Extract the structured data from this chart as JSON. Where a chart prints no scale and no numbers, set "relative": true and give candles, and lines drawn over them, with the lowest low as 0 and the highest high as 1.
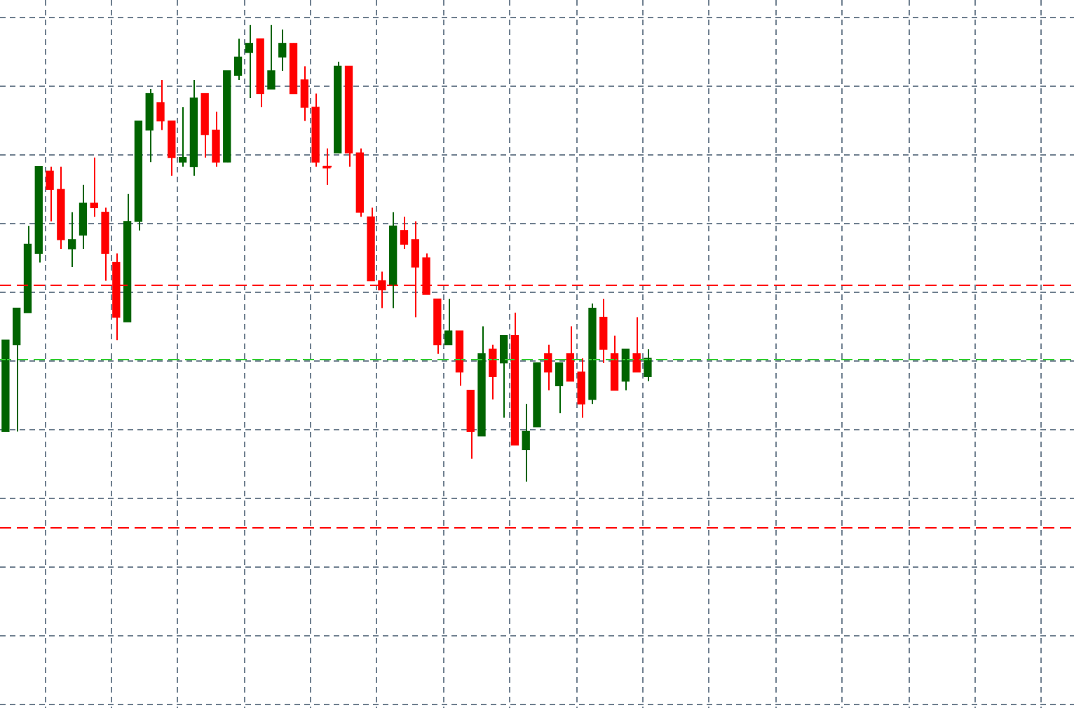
{
  "chart_data": {
    "type": "candlestick",
    "relative": true,
    "grid": true,
    "legend": false,
    "categories": [
      null,
      null,
      null,
      null,
      null,
      null,
      null,
      null,
      null,
      null,
      null,
      null,
      null,
      null,
      null,
      null,
      null,
      null,
      null,
      null,
      null,
      null,
      null,
      null,
      null,
      null,
      null,
      null,
      null,
      null,
      null,
      null,
      null,
      null,
      null,
      null,
      null,
      null,
      null,
      null,
      null,
      null,
      null,
      null,
      null,
      null,
      null,
      null,
      null,
      null,
      null,
      null,
      null,
      null,
      null,
      null,
      null,
      null,
      null
    ],
    "ohlc": [
      [
        0.11,
        0.31,
        0.11,
        0.31
      ],
      [
        0.3,
        0.38,
        0.11,
        0.38
      ],
      [
        0.37,
        0.56,
        0.37,
        0.52
      ],
      [
        0.5,
        0.69,
        0.48,
        0.69
      ],
      [
        0.68,
        0.69,
        0.57,
        0.64
      ],
      [
        0.64,
        0.69,
        0.51,
        0.53
      ],
      [
        0.51,
        0.59,
        0.47,
        0.53
      ],
      [
        0.54,
        0.65,
        0.51,
        0.61
      ],
      [
        0.61,
        0.71,
        0.58,
        0.6
      ],
      [
        0.59,
        0.6,
        0.44,
        0.5
      ],
      [
        0.48,
        0.5,
        0.31,
        0.36
      ],
      [
        0.35,
        0.63,
        0.35,
        0.57
      ],
      [
        0.57,
        0.79,
        0.55,
        0.79
      ],
      [
        0.77,
        0.86,
        0.7,
        0.85
      ],
      [
        0.83,
        0.88,
        0.77,
        0.79
      ],
      [
        0.79,
        0.79,
        0.67,
        0.71
      ],
      [
        0.7,
        0.82,
        0.69,
        0.71
      ],
      [
        0.69,
        0.88,
        0.67,
        0.84
      ],
      [
        0.85,
        0.85,
        0.71,
        0.76
      ],
      [
        0.77,
        0.81,
        0.69,
        0.7
      ],
      [
        0.7,
        0.9,
        0.7,
        0.9
      ],
      [
        0.89,
        0.97,
        0.88,
        0.93
      ],
      [
        0.94,
        1.0,
        0.84,
        0.96
      ],
      [
        0.97,
        0.97,
        0.82,
        0.85
      ],
      [
        0.86,
        1.0,
        0.86,
        0.9
      ],
      [
        0.93,
        0.99,
        0.9,
        0.96
      ],
      [
        0.96,
        0.96,
        0.85,
        0.85
      ],
      [
        0.88,
        0.91,
        0.79,
        0.82
      ],
      [
        0.82,
        0.85,
        0.69,
        0.7
      ],
      [
        0.69,
        0.73,
        0.65,
        0.69
      ],
      [
        0.72,
        0.92,
        0.72,
        0.91
      ],
      [
        0.91,
        0.91,
        0.69,
        0.72
      ],
      [
        0.72,
        0.73,
        0.58,
        0.59
      ],
      [
        0.58,
        0.6,
        0.44,
        0.44
      ],
      [
        0.44,
        0.46,
        0.38,
        0.42
      ],
      [
        0.43,
        0.59,
        0.38,
        0.56
      ],
      [
        0.55,
        0.58,
        0.51,
        0.52
      ],
      [
        0.53,
        0.57,
        0.36,
        0.47
      ],
      [
        0.49,
        0.5,
        0.41,
        0.41
      ],
      [
        0.4,
        0.4,
        0.28,
        0.3
      ],
      [
        0.3,
        0.4,
        0.3,
        0.33
      ],
      [
        0.33,
        0.33,
        0.21,
        0.24
      ],
      [
        0.2,
        0.2,
        0.05,
        0.11
      ],
      [
        0.1,
        0.34,
        0.1,
        0.28
      ],
      [
        0.29,
        0.3,
        0.18,
        0.23
      ],
      [
        0.26,
        0.32,
        0.14,
        0.32
      ],
      [
        0.32,
        0.37,
        0.08,
        0.08
      ],
      [
        0.07,
        0.17,
        0,
        0.11
      ],
      [
        0.12,
        0.26,
        0.12,
        0.26
      ],
      [
        0.28,
        0.3,
        0.2,
        0.24
      ],
      [
        0.21,
        0.26,
        0.15,
        0.26
      ],
      [
        0.28,
        0.34,
        0.22,
        0.22
      ],
      [
        0.24,
        0.27,
        0.14,
        0.17
      ],
      [
        0.18,
        0.39,
        0.17,
        0.38
      ],
      [
        0.36,
        0.4,
        0.26,
        0.29
      ],
      [
        0.28,
        0.32,
        0.2,
        0.2
      ],
      [
        0.22,
        0.29,
        0.2,
        0.29
      ],
      [
        0.28,
        0.36,
        0.24,
        0.24
      ],
      [
        0.23,
        0.29,
        0.22,
        0.27
      ]
    ],
    "colors": [
      "#006400",
      "#006400",
      "#006400",
      "#006400",
      "#ff0000",
      "#ff0000",
      "#006400",
      "#006400",
      "#ff0000",
      "#ff0000",
      "#ff0000",
      "#006400",
      "#006400",
      "#006400",
      "#ff0000",
      "#ff0000",
      "#006400",
      "#006400",
      "#ff0000",
      "#ff0000",
      "#006400",
      "#006400",
      "#006400",
      "#ff0000",
      "#006400",
      "#006400",
      "#ff0000",
      "#ff0000",
      "#ff0000",
      "#ff0000",
      "#006400",
      "#ff0000",
      "#ff0000",
      "#ff0000",
      "#ff0000",
      "#006400",
      "#ff0000",
      "#ff0000",
      "#ff0000",
      "#ff0000",
      "#006400",
      "#ff0000",
      "#ff0000",
      "#006400",
      "#ff0000",
      "#006400",
      "#ff0000",
      "#006400",
      "#006400",
      "#ff0000",
      "#006400",
      "#ff0000",
      "#ff0000",
      "#006400",
      "#ff0000",
      "#ff0000",
      "#006400",
      "#ff0000",
      "#006400"
    ],
    "ref_lines": [
      {
        "axis": "y",
        "value": 0.43,
        "color": "#ff0000",
        "line_style": "dashed"
      },
      {
        "axis": "y",
        "value": 0.27,
        "color": "#32cd32",
        "line_style": "dashed"
      },
      {
        "axis": "y",
        "value": -0.1,
        "color": "#ff0000",
        "line_style": "dashed"
      }
    ]
  }
}
